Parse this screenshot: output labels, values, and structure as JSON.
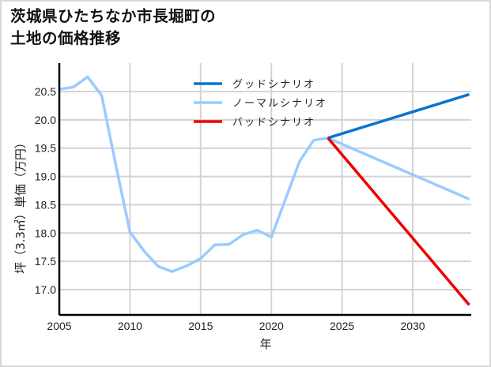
{
  "title": {
    "line1": "茨城県ひたちなか市長堀町の",
    "line2": "土地の価格推移"
  },
  "chart_data": {
    "type": "line",
    "title": "茨城県ひたちなか市長堀町の土地の価格推移",
    "xlabel": "年",
    "ylabel": "坪（3.3㎡）単価（万円）",
    "xlim": [
      2005,
      2034
    ],
    "ylim": [
      16.55,
      20.98
    ],
    "grid": true,
    "legend_position": "upper center",
    "x_ticks": [
      2005,
      2010,
      2015,
      2020,
      2025,
      2030
    ],
    "y_ticks": [
      17.0,
      17.5,
      18.0,
      18.5,
      19.0,
      19.5,
      20.0,
      20.5
    ],
    "series": [
      {
        "name": "グッドシナリオ",
        "color": "#0a74cf",
        "x": [
          2024,
          2034
        ],
        "values": [
          19.68,
          20.45
        ]
      },
      {
        "name": "ノーマルシナリオ",
        "color": "#99ccff",
        "x": [
          2005,
          2006,
          2007,
          2008,
          2009,
          2010,
          2011,
          2012,
          2013,
          2014,
          2015,
          2016,
          2017,
          2018,
          2019,
          2020,
          2021,
          2022,
          2023,
          2024,
          2034
        ],
        "values": [
          20.54,
          20.58,
          20.76,
          20.43,
          19.2,
          18.02,
          17.68,
          17.41,
          17.32,
          17.42,
          17.55,
          17.79,
          17.8,
          17.97,
          18.05,
          17.93,
          18.6,
          19.27,
          19.64,
          19.68,
          18.6
        ]
      },
      {
        "name": "バッドシナリオ",
        "color": "#ee0000",
        "x": [
          2024,
          2034
        ],
        "values": [
          19.68,
          16.73
        ]
      }
    ]
  },
  "axes": {
    "x_ticks": [
      "2005",
      "2010",
      "2015",
      "2020",
      "2025",
      "2030"
    ],
    "y_ticks": [
      "17.0",
      "17.5",
      "18.0",
      "18.5",
      "19.0",
      "19.5",
      "20.0",
      "20.5"
    ],
    "xlabel": "年",
    "ylabel": "坪（3.3㎡）単価（万円）"
  },
  "legend": [
    {
      "label": "グッドシナリオ",
      "color": "#0a74cf"
    },
    {
      "label": "ノーマルシナリオ",
      "color": "#99ccff"
    },
    {
      "label": "バッドシナリオ",
      "color": "#ee0000"
    }
  ]
}
